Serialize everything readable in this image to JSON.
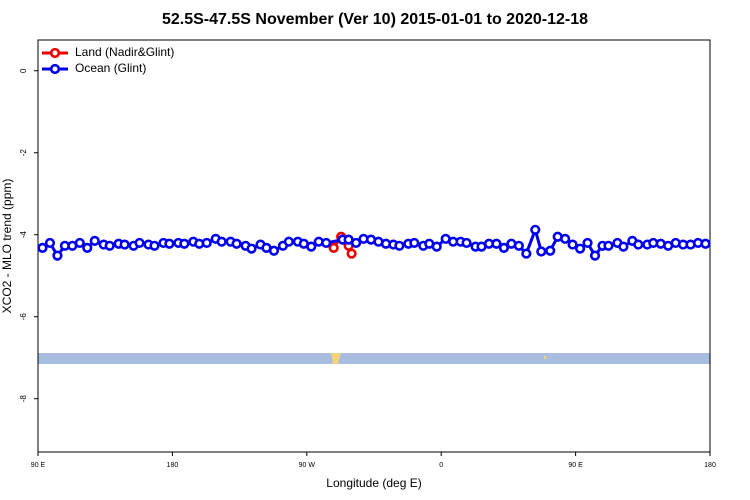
{
  "chart_data": {
    "type": "line",
    "title": "52.5S-47.5S November (Ver 10)   2015-01-01 to 2020-12-18",
    "x_label": "Longitude (deg E)",
    "y_label": "XCO2 - MLO trend (ppm)",
    "xlim": [
      90,
      540
    ],
    "xticks": [
      {
        "value": 90,
        "label": "90 E"
      },
      {
        "value": 180,
        "label": "180"
      },
      {
        "value": 270,
        "label": "90 W"
      },
      {
        "value": 360,
        "label": "0"
      },
      {
        "value": 450,
        "label": "90 E"
      },
      {
        "value": 540,
        "label": "180"
      }
    ],
    "ylim": [
      -9.3,
      0.75
    ],
    "yticks": [
      0,
      -2,
      -4,
      -6,
      -8
    ],
    "legend": "top-left",
    "series": [
      {
        "name": "Land (Nadir&Glint)",
        "color": "#ee0000",
        "x": [
          288,
          293,
          298,
          300
        ],
        "values": [
          -4.32,
          -4.05,
          -4.27,
          -4.46
        ]
      },
      {
        "name": "Ocean (Glint)",
        "color": "#0000ee",
        "x": [
          93,
          98,
          103,
          108,
          113,
          118,
          123,
          128,
          134,
          138,
          144,
          148,
          154,
          158,
          164,
          168,
          174,
          178,
          184,
          188,
          194,
          198,
          203,
          209,
          213,
          219,
          223,
          229,
          233,
          239,
          243,
          248,
          254,
          258,
          264,
          268,
          273,
          278,
          283,
          294,
          298,
          303,
          308,
          313,
          318,
          323,
          328,
          332,
          338,
          342,
          348,
          352,
          357,
          363,
          368,
          373,
          377,
          383,
          387,
          392,
          397,
          402,
          407,
          412,
          417,
          423,
          427,
          433,
          438,
          443,
          448,
          453,
          458,
          463,
          468,
          472,
          478,
          482,
          488,
          492,
          498,
          502,
          507,
          512,
          517,
          522,
          527,
          532,
          537
        ],
        "values": [
          -4.32,
          -4.2,
          -4.51,
          -4.27,
          -4.27,
          -4.2,
          -4.32,
          -4.15,
          -4.24,
          -4.27,
          -4.22,
          -4.24,
          -4.27,
          -4.2,
          -4.24,
          -4.27,
          -4.2,
          -4.22,
          -4.2,
          -4.22,
          -4.17,
          -4.22,
          -4.2,
          -4.1,
          -4.17,
          -4.17,
          -4.22,
          -4.27,
          -4.34,
          -4.24,
          -4.32,
          -4.39,
          -4.27,
          -4.17,
          -4.17,
          -4.22,
          -4.29,
          -4.17,
          -4.2,
          -4.12,
          -4.12,
          -4.2,
          -4.1,
          -4.12,
          -4.17,
          -4.22,
          -4.24,
          -4.27,
          -4.22,
          -4.2,
          -4.27,
          -4.22,
          -4.29,
          -4.1,
          -4.17,
          -4.17,
          -4.2,
          -4.29,
          -4.29,
          -4.22,
          -4.22,
          -4.32,
          -4.22,
          -4.27,
          -4.46,
          -3.88,
          -4.41,
          -4.39,
          -4.05,
          -4.1,
          -4.24,
          -4.34,
          -4.2,
          -4.51,
          -4.27,
          -4.27,
          -4.2,
          -4.29,
          -4.15,
          -4.24,
          -4.24,
          -4.2,
          -4.22,
          -4.27,
          -4.2,
          -4.24,
          -4.24,
          -4.2,
          -4.22
        ]
      }
    ]
  }
}
